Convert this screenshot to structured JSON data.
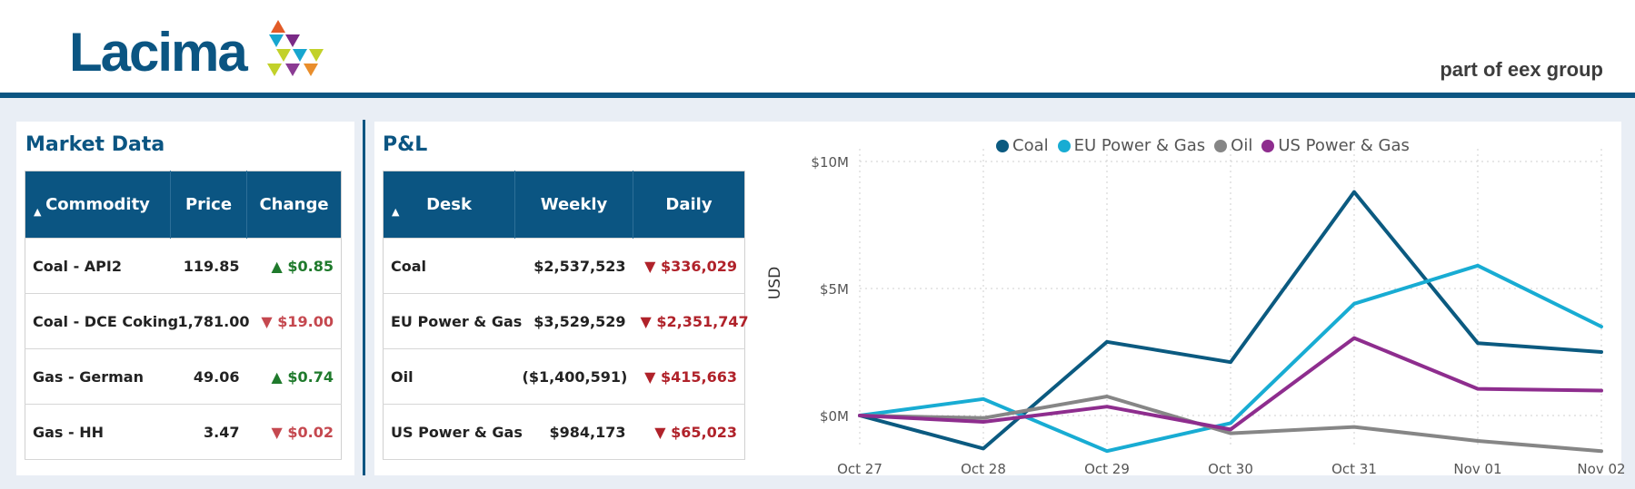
{
  "header": {
    "logo_text": "Lacima",
    "tagline": "part of eex group"
  },
  "market_data": {
    "title": "Market Data",
    "columns": [
      "Commodity",
      "Price",
      "Change"
    ],
    "rows": [
      {
        "commodity": "Coal - API2",
        "price": "119.85",
        "change": "▲ $0.85",
        "direction": "up"
      },
      {
        "commodity": "Coal - DCE Coking",
        "price": "1,781.00",
        "change": "▼ $19.00",
        "direction": "down"
      },
      {
        "commodity": "Gas - German",
        "price": "49.06",
        "change": "▲ $0.74",
        "direction": "up"
      },
      {
        "commodity": "Gas - HH",
        "price": "3.47",
        "change": "▼ $0.02",
        "direction": "down"
      }
    ]
  },
  "pnl": {
    "title": "P&L",
    "columns": [
      "Desk",
      "Weekly",
      "Daily"
    ],
    "rows": [
      {
        "desk": "Coal",
        "weekly": "$2,537,523",
        "daily": "▼ $336,029"
      },
      {
        "desk": "EU Power & Gas",
        "weekly": "$3,529,529",
        "daily": "▼ $2,351,747"
      },
      {
        "desk": "Oil",
        "weekly": "($1,400,591)",
        "daily": "▼ $415,663"
      },
      {
        "desk": "US Power & Gas",
        "weekly": "$984,173",
        "daily": "▼ $65,023"
      }
    ]
  },
  "colors": {
    "brand": "#0b5582",
    "up": "#1f7a2c",
    "down": "#b0222a"
  },
  "chart_data": {
    "type": "line",
    "title": "",
    "xlabel": "",
    "ylabel": "USD",
    "x": [
      "Oct 27",
      "Oct 28",
      "Oct 29",
      "Oct 30",
      "Oct 31",
      "Nov 01",
      "Nov 02"
    ],
    "y_ticks": [
      "$0M",
      "$5M",
      "$10M"
    ],
    "ylim": [
      -1.5,
      10.5
    ],
    "legend_position": "top",
    "grid": true,
    "series": [
      {
        "name": "Coal",
        "color": "#0b5a80",
        "values": [
          0,
          -1.3,
          2.9,
          2.1,
          8.8,
          2.85,
          2.5
        ]
      },
      {
        "name": "EU Power & Gas",
        "color": "#18acd3",
        "values": [
          0,
          0.65,
          -1.4,
          -0.3,
          4.4,
          5.9,
          3.5
        ]
      },
      {
        "name": "Oil",
        "color": "#868686",
        "values": [
          0,
          -0.1,
          0.75,
          -0.7,
          -0.45,
          -1.0,
          -1.4
        ]
      },
      {
        "name": "US Power & Gas",
        "color": "#8e2d8e",
        "values": [
          0,
          -0.25,
          0.35,
          -0.55,
          3.05,
          1.05,
          0.98
        ]
      }
    ]
  }
}
